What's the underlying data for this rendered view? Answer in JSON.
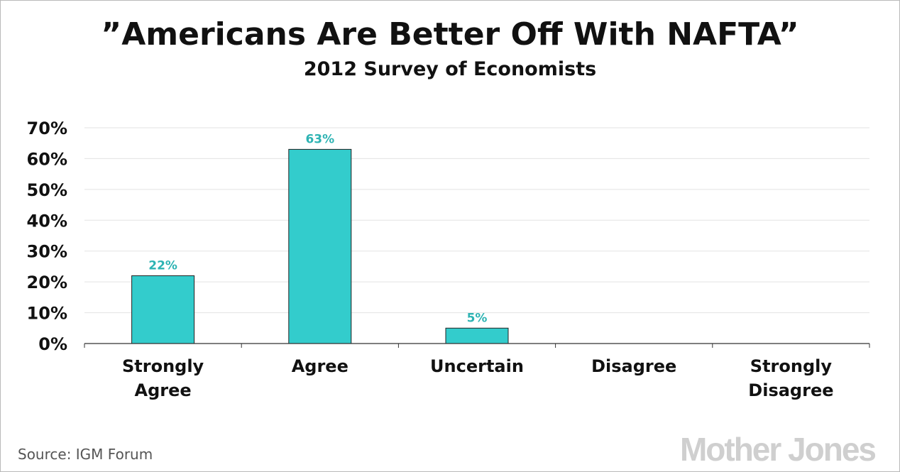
{
  "chart_data": {
    "type": "bar",
    "title": "”Americans Are Better Off With NAFTA”",
    "subtitle": "2012 Survey of Economists",
    "categories": [
      [
        "Strongly",
        "Agree"
      ],
      [
        "Agree"
      ],
      [
        "Uncertain"
      ],
      [
        "Disagree"
      ],
      [
        "Strongly",
        "Disagree"
      ]
    ],
    "values": [
      22,
      63,
      5,
      null,
      null
    ],
    "data_labels": [
      "22%",
      "63%",
      "5%",
      "",
      ""
    ],
    "ylim": [
      0,
      70
    ],
    "yticks": [
      0,
      10,
      20,
      30,
      40,
      50,
      60,
      70
    ],
    "ytick_labels": [
      "0%",
      "10%",
      "20%",
      "30%",
      "40%",
      "50%",
      "60%",
      "70%"
    ],
    "xlabel": "",
    "ylabel": "",
    "grid": true,
    "legend": "none",
    "bar_color": "#33cccc",
    "label_color": "#2db3b3",
    "gridline_color": "#e3e3e3"
  },
  "footer": {
    "source": "Source: IGM Forum",
    "logo": "Mother Jones"
  }
}
